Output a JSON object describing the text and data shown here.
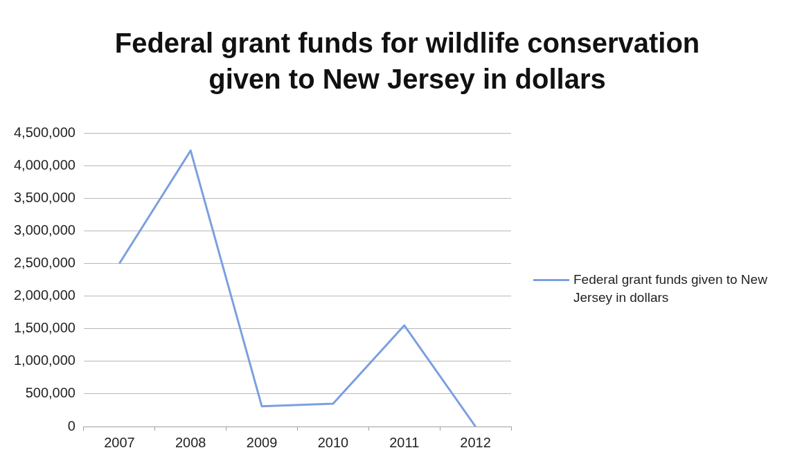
{
  "chart_data": {
    "type": "line",
    "title": "Federal grant funds for wildlife conservation given to New Jersey in dollars",
    "categories": [
      "2007",
      "2008",
      "2009",
      "2010",
      "2011",
      "2012"
    ],
    "series": [
      {
        "name": "Federal grant funds given to New Jersey in dollars",
        "color": "#7b9fe0",
        "values": [
          2500000,
          4230000,
          310000,
          350000,
          1550000,
          0
        ]
      }
    ],
    "ylim": [
      0,
      4500000
    ],
    "yticks": [
      0,
      {
        "value": 500000,
        "label": "500,000"
      },
      {
        "value": 1000000,
        "label": "1,000,000"
      },
      {
        "value": 1500000,
        "label": "1,500,000"
      },
      {
        "value": 2000000,
        "label": "2,000,000"
      },
      {
        "value": 2500000,
        "label": "2,500,000"
      },
      {
        "value": 3000000,
        "label": "3,000,000"
      },
      {
        "value": 3500000,
        "label": "3,500,000"
      },
      {
        "value": 4000000,
        "label": "4,000,000"
      },
      {
        "value": 4500000,
        "label": "4,500,000"
      }
    ],
    "grid": "y",
    "legend": "right",
    "marker": "none",
    "line_style": "solid"
  }
}
